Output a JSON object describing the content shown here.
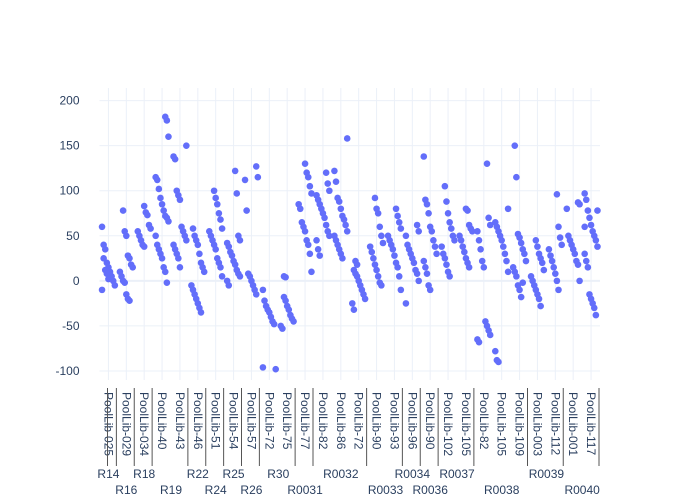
{
  "chart_data": {
    "type": "scatter",
    "mode": "strip",
    "title": "",
    "xlabel": "",
    "ylabel": "",
    "ylim": [
      -110,
      214
    ],
    "yticks": [
      -100,
      -50,
      0,
      50,
      100,
      150,
      200
    ],
    "grid": true,
    "marker_color": "#636efa",
    "groups": [
      {
        "label": "R14",
        "categories": [
          "PoolLib-025"
        ]
      },
      {
        "label": "R16",
        "categories": [
          "PoolLib-029"
        ]
      },
      {
        "label": "R18",
        "categories": [
          "PoolLib-034"
        ]
      },
      {
        "label": "R19",
        "categories": [
          "PoolLib-40",
          "PoolLib-43"
        ]
      },
      {
        "label": "R22",
        "categories": [
          "PoolLib-46"
        ]
      },
      {
        "label": "R24",
        "categories": [
          "PoolLib-51"
        ]
      },
      {
        "label": "R25",
        "categories": [
          "PoolLib-54"
        ]
      },
      {
        "label": "R26",
        "categories": [
          "PoolLib-57"
        ]
      },
      {
        "label": "R30",
        "categories": [
          "PoolLib-72",
          "PoolLib-75"
        ]
      },
      {
        "label": "R0031",
        "categories": [
          "PoolLib-77"
        ]
      },
      {
        "label": "R0032",
        "categories": [
          "PoolLib-82",
          "PoolLib-86",
          "PoolLib-72"
        ]
      },
      {
        "label": "R0033",
        "categories": [
          "PoolLib-90",
          "PoolLib-93"
        ]
      },
      {
        "label": "R0034",
        "categories": [
          "PoolLib-96"
        ]
      },
      {
        "label": "R0036",
        "categories": [
          "PoolLib-90"
        ]
      },
      {
        "label": "R0037",
        "categories": [
          "PoolLib-102",
          "PoolLib-105"
        ]
      },
      {
        "label": "R0038",
        "categories": [
          "PoolLib-82",
          "PoolLib-105",
          "PoolLib-109"
        ]
      },
      {
        "label": "R0039",
        "categories": [
          "PoolLib-003",
          "PoolLib-112"
        ]
      },
      {
        "label": "R0040",
        "categories": [
          "PoolLib-001",
          "PoolLib-117"
        ]
      }
    ],
    "values": [
      [
        60,
        40,
        35,
        20,
        15,
        10,
        5,
        0,
        -5,
        -10,
        25,
        12,
        8,
        2
      ],
      [
        78,
        55,
        50,
        28,
        25,
        18,
        15,
        10,
        5,
        0,
        -2,
        -15,
        -20,
        -22
      ],
      [
        83,
        76,
        73,
        62,
        58,
        55,
        50,
        45,
        40,
        38
      ],
      [
        182,
        178,
        160,
        115,
        112,
        102,
        92,
        85,
        78,
        72,
        70,
        66,
        50,
        40,
        35,
        30,
        25,
        15,
        10,
        -2
      ],
      [
        150,
        138,
        135,
        100,
        95,
        90,
        60,
        55,
        50,
        45,
        40,
        35,
        30,
        25,
        15
      ],
      [
        58,
        50,
        45,
        40,
        30,
        20,
        15,
        10,
        -5,
        -10,
        -15,
        -20,
        -25,
        -30,
        -35
      ],
      [
        100,
        92,
        85,
        75,
        68,
        58,
        55,
        50,
        45,
        40,
        35,
        25,
        20,
        15,
        5
      ],
      [
        122,
        97,
        50,
        45,
        42,
        38,
        32,
        28,
        22,
        18,
        12,
        8,
        5,
        0,
        -5
      ],
      [
        127,
        115,
        112,
        78,
        8,
        5,
        0,
        -5,
        -10,
        -15
      ],
      [
        -10,
        -22,
        -28,
        -32,
        -35,
        -40,
        -45,
        -48,
        -98,
        -96
      ],
      [
        -18,
        -22,
        -28,
        -32,
        -38,
        -42,
        -45,
        -50,
        -53,
        5,
        4
      ],
      [
        130,
        120,
        115,
        105,
        97,
        85,
        80,
        65,
        60,
        55,
        45,
        40,
        30,
        10
      ],
      [
        120,
        108,
        100,
        95,
        90,
        85,
        80,
        75,
        70,
        62,
        55,
        50,
        45,
        35,
        28
      ],
      [
        158,
        122,
        110,
        92,
        88,
        80,
        72,
        68,
        62,
        55,
        50,
        45,
        40,
        35,
        30,
        25
      ],
      [
        12,
        8,
        5,
        0,
        -5,
        -10,
        -15,
        -20,
        -25,
        -32,
        22,
        18
      ],
      [
        92,
        80,
        75,
        60,
        50,
        42,
        38,
        32,
        25,
        18,
        12,
        5,
        -2,
        -5
      ],
      [
        80,
        72,
        65,
        58,
        50,
        45,
        40,
        35,
        28,
        20,
        15,
        5,
        -10
      ],
      [
        62,
        55,
        50,
        40,
        35,
        30,
        25,
        20,
        12,
        8,
        0,
        -25
      ],
      [
        138,
        90,
        85,
        75,
        60,
        55,
        45,
        38,
        30,
        22,
        15,
        8,
        -5,
        -10
      ],
      [
        105,
        88,
        75,
        65,
        58,
        50,
        45,
        38,
        30,
        25,
        18,
        10,
        5
      ],
      [
        80,
        78,
        62,
        58,
        55,
        50,
        45,
        38,
        32,
        25,
        20,
        15
      ],
      [
        130,
        70,
        62,
        55,
        45,
        35,
        22,
        15,
        -45,
        -50,
        -55,
        -60,
        -65,
        -68
      ],
      [
        80,
        65,
        60,
        55,
        50,
        45,
        38,
        30,
        22,
        10,
        -78,
        -88,
        -90
      ],
      [
        150,
        115,
        52,
        48,
        42,
        35,
        30,
        22,
        15,
        10,
        5,
        -5,
        -10,
        -18,
        -2
      ],
      [
        45,
        38,
        30,
        25,
        20,
        12,
        5,
        0,
        -5,
        -10,
        -15,
        -20,
        -28
      ],
      [
        96,
        60,
        48,
        40,
        35,
        28,
        22,
        15,
        8,
        0,
        -10
      ],
      [
        87,
        85,
        80,
        50,
        45,
        40,
        35,
        30,
        22,
        18,
        0
      ],
      [
        97,
        90,
        78,
        70,
        62,
        55,
        50,
        45,
        38,
        30,
        22,
        15,
        -15,
        -20,
        -25,
        -30,
        -38,
        78,
        60
      ]
    ]
  }
}
